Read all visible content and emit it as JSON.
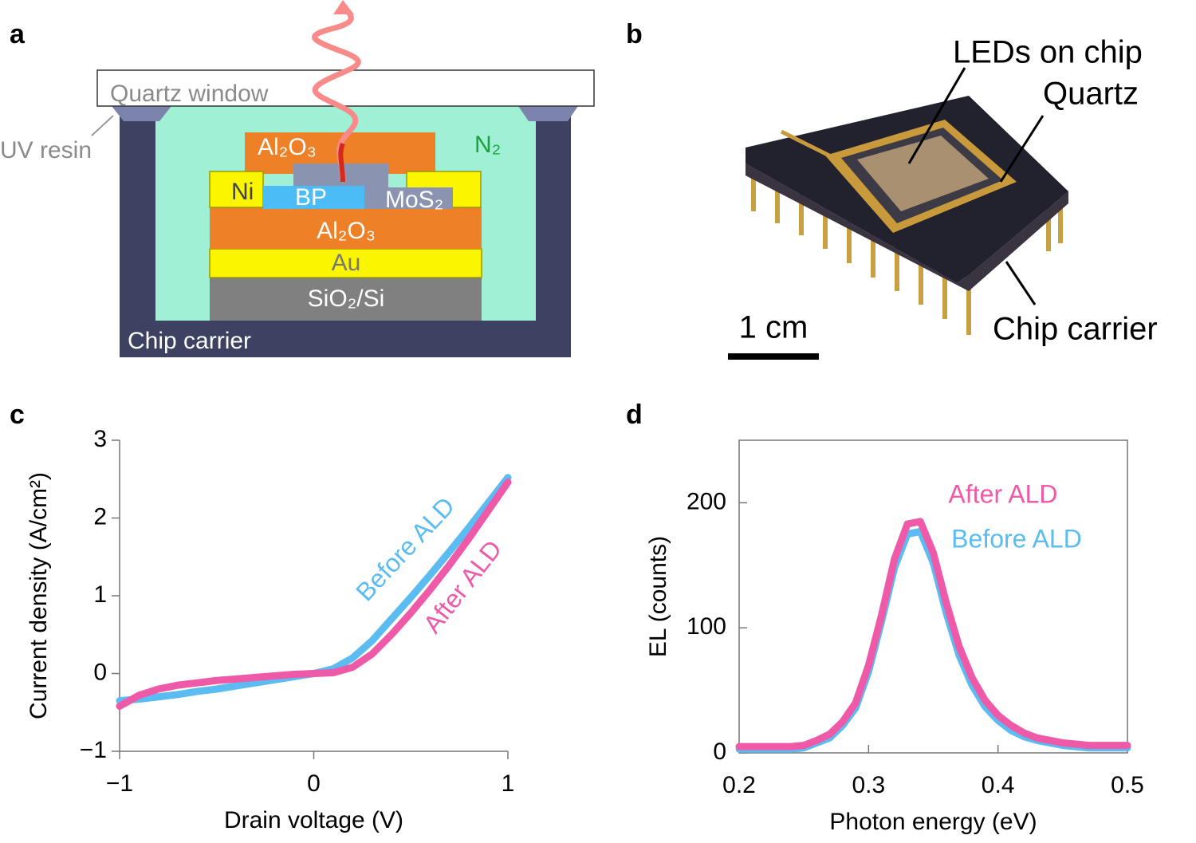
{
  "panel_labels": [
    "a",
    "b",
    "c",
    "d"
  ],
  "diagram": {
    "quartz_window": "Quartz window",
    "uv_resin": "UV resin",
    "gas": "N₂",
    "top_oxide": "Al₂O₃",
    "contact_left": "Ni",
    "bp": "BP",
    "mos2": "MoS₂",
    "oxide": "Al₂O₃",
    "gate": "Au",
    "substrate": "SiO₂/Si",
    "chip_carrier": "Chip carrier"
  },
  "photo": {
    "leds": "LEDs on chip",
    "quartz": "Quartz",
    "scale_bar": "1 cm",
    "chip_carrier": "Chip carrier"
  },
  "chart_data": [
    {
      "type": "line",
      "xlabel": "Drain voltage (V)",
      "ylabel": "Current density (A/cm²)",
      "x": [
        -1,
        -0.9,
        -0.8,
        -0.7,
        -0.6,
        -0.5,
        -0.4,
        -0.3,
        -0.2,
        -0.1,
        0,
        0.1,
        0.2,
        0.3,
        0.4,
        0.5,
        0.6,
        0.7,
        0.8,
        0.9,
        1
      ],
      "xlim": [
        -1,
        1
      ],
      "xticks": [
        {
          "value": -1,
          "label": "−1"
        },
        0,
        1
      ],
      "ylim": [
        -1,
        3
      ],
      "yticks": [
        {
          "value": -1,
          "label": "−1"
        },
        0,
        1,
        2,
        3
      ],
      "frame": false,
      "series": [
        {
          "name": "Before ALD",
          "color": "#5bbcf2",
          "values": [
            -0.35,
            -0.33,
            -0.3,
            -0.27,
            -0.23,
            -0.2,
            -0.16,
            -0.12,
            -0.08,
            -0.04,
            0,
            0.06,
            0.2,
            0.42,
            0.7,
            0.98,
            1.27,
            1.57,
            1.88,
            2.2,
            2.52
          ]
        },
        {
          "name": "After ALD",
          "color": "#ee5aa8",
          "values": [
            -0.42,
            -0.28,
            -0.2,
            -0.15,
            -0.12,
            -0.09,
            -0.07,
            -0.05,
            -0.03,
            -0.01,
            0,
            0.01,
            0.08,
            0.25,
            0.5,
            0.78,
            1.08,
            1.4,
            1.74,
            2.1,
            2.46
          ]
        }
      ]
    },
    {
      "type": "line",
      "xlabel": "Photon energy (eV)",
      "ylabel": "EL (counts)",
      "x": [
        0.2,
        0.21,
        0.22,
        0.23,
        0.24,
        0.25,
        0.26,
        0.27,
        0.28,
        0.29,
        0.3,
        0.31,
        0.32,
        0.33,
        0.34,
        0.35,
        0.36,
        0.37,
        0.38,
        0.39,
        0.4,
        0.41,
        0.42,
        0.43,
        0.44,
        0.45,
        0.46,
        0.47,
        0.48,
        0.49,
        0.5
      ],
      "xlim": [
        0.2,
        0.5
      ],
      "xticks": [
        0.2,
        0.3,
        0.4,
        0.5
      ],
      "ylim": [
        0,
        250
      ],
      "yticks": [
        0,
        100,
        200
      ],
      "frame": true,
      "series": [
        {
          "name": "Before ALD",
          "color": "#5bbcf2",
          "values": [
            3,
            3,
            3,
            3,
            3,
            4,
            8,
            12,
            22,
            36,
            65,
            105,
            148,
            175,
            177,
            152,
            112,
            78,
            54,
            37,
            26,
            18,
            13,
            10,
            8,
            6,
            5,
            4,
            4,
            4,
            4
          ]
        },
        {
          "name": "After ALD",
          "color": "#ee5aa8",
          "values": [
            5,
            5,
            5,
            5,
            5,
            6,
            10,
            15,
            25,
            40,
            70,
            110,
            155,
            183,
            185,
            160,
            120,
            85,
            60,
            42,
            30,
            22,
            16,
            12,
            10,
            8,
            7,
            6,
            6,
            6,
            6
          ]
        }
      ]
    }
  ]
}
